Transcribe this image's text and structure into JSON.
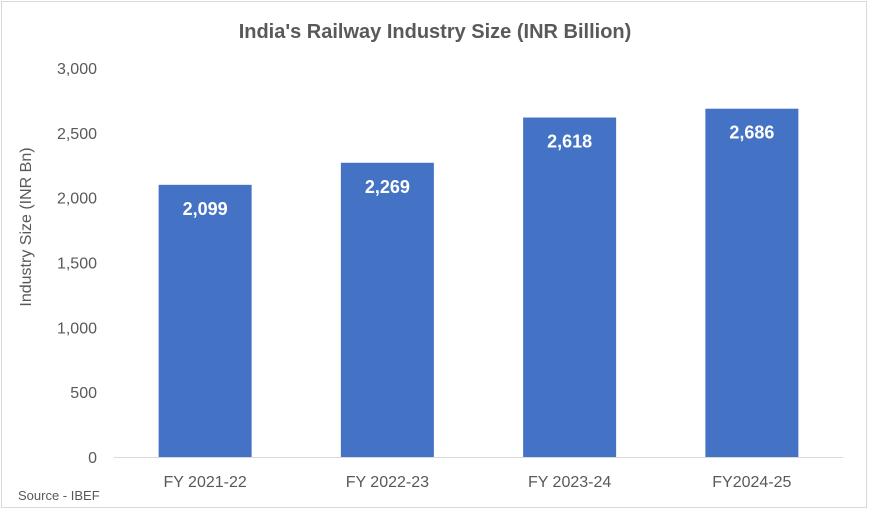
{
  "chart_data": {
    "type": "bar",
    "title": "India's Railway Industry Size (INR Billion)",
    "ylabel": "Industry Size (INR Bn)",
    "xlabel": "",
    "categories": [
      "FY 2021-22",
      "FY 2022-23",
      "FY 2023-24",
      "FY2024-25"
    ],
    "values": [
      2099,
      2269,
      2618,
      2686
    ],
    "data_labels": [
      "2,099",
      "2,269",
      "2,618",
      "2,686"
    ],
    "ylim": [
      0,
      3000
    ],
    "yticks": [
      0,
      500,
      1000,
      1500,
      2000,
      2500,
      3000
    ],
    "ytick_labels": [
      "0",
      "500",
      "1,000",
      "1,500",
      "2,000",
      "2,500",
      "3,000"
    ],
    "bar_color": "#4472c4",
    "grid": false,
    "legend": "none"
  },
  "source": "Source - IBEF"
}
